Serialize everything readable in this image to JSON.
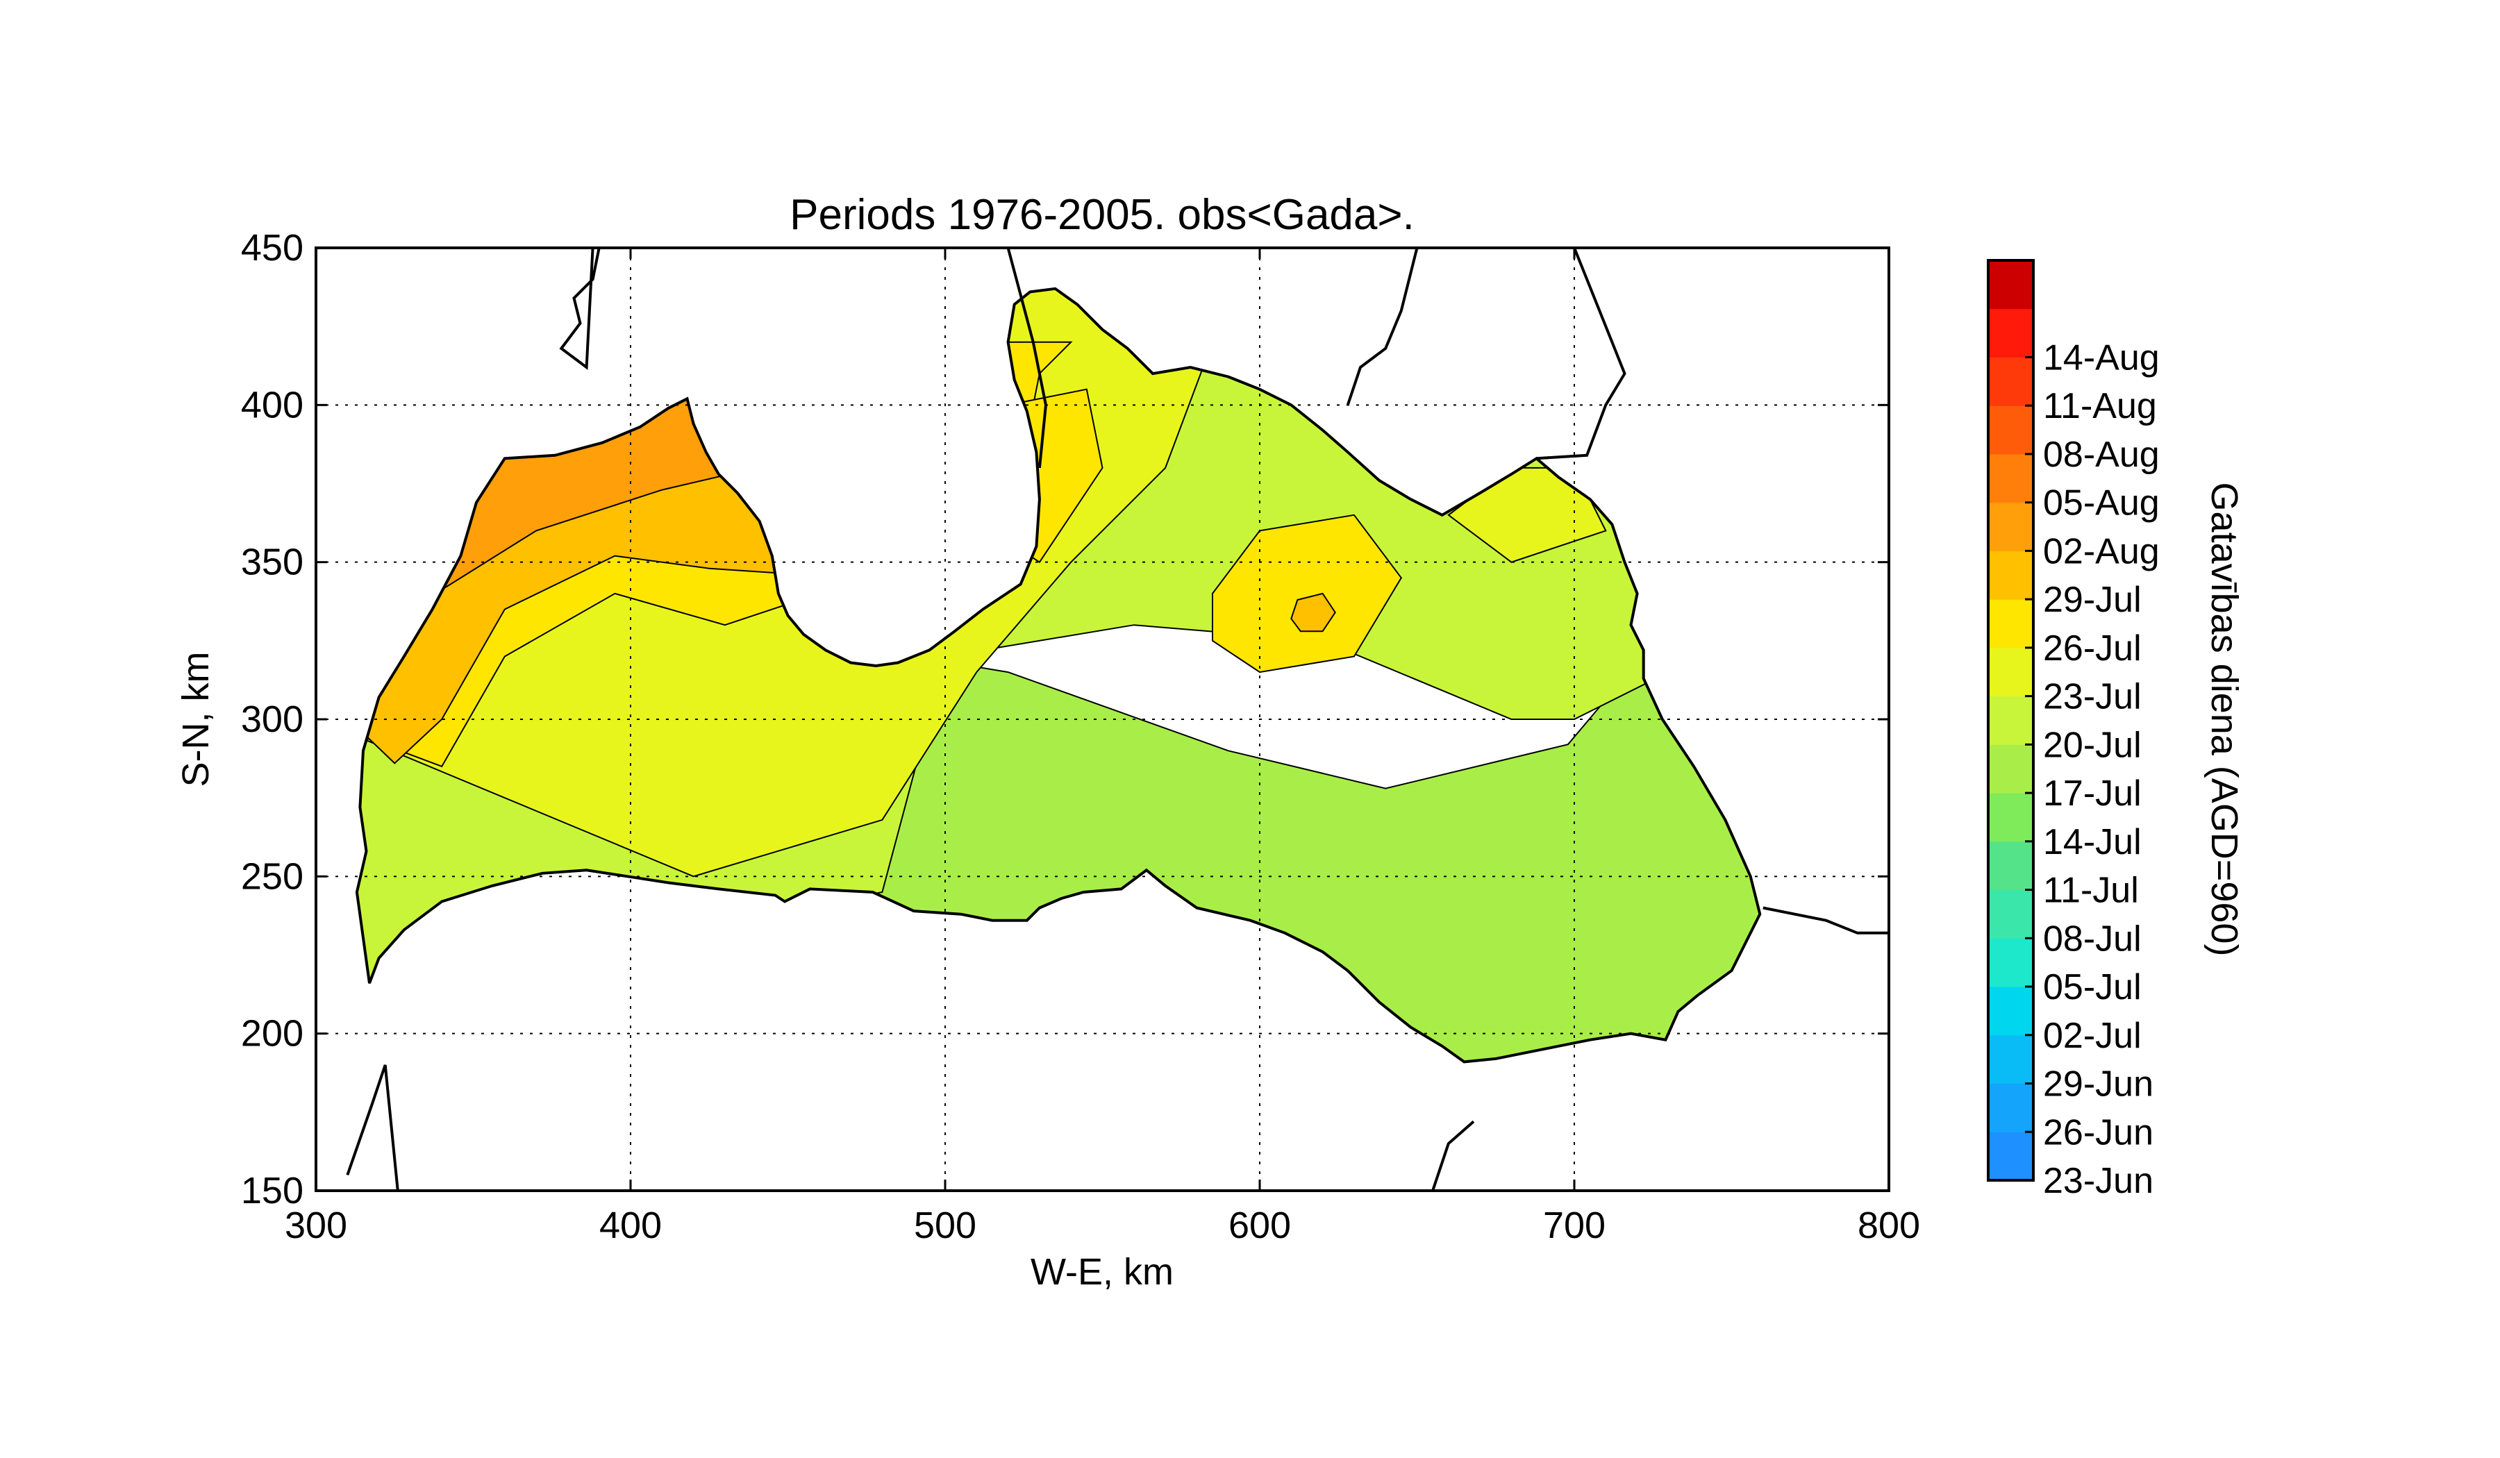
{
  "chart_data": {
    "type": "contour-map",
    "title": "Periods 1976-2005. obs<Gada>.",
    "xlabel": "W-E, km",
    "ylabel": "S-N, km",
    "xlim": [
      300,
      800
    ],
    "ylim": [
      150,
      450
    ],
    "xticks": [
      300,
      400,
      500,
      600,
      700,
      800
    ],
    "yticks": [
      150,
      200,
      250,
      300,
      350,
      400,
      450
    ],
    "grid": true,
    "colorbar": {
      "label": "Gatavības diena (AGD=960)",
      "levels": [
        {
          "label": "23-Jun",
          "color": "#1e90ff"
        },
        {
          "label": "26-Jun",
          "color": "#14a4fb"
        },
        {
          "label": "29-Jun",
          "color": "#0abcf6"
        },
        {
          "label": "02-Jul",
          "color": "#00d6ee"
        },
        {
          "label": "05-Jul",
          "color": "#1de8cc"
        },
        {
          "label": "08-Jul",
          "color": "#3ae6aa"
        },
        {
          "label": "11-Jul",
          "color": "#55e38a"
        },
        {
          "label": "14-Jul",
          "color": "#7fea5a"
        },
        {
          "label": "17-Jul",
          "color": "#a9ee48"
        },
        {
          "label": "20-Jul",
          "color": "#c8f53a"
        },
        {
          "label": "23-Jul",
          "color": "#e8f51c"
        },
        {
          "label": "26-Jul",
          "color": "#ffe600"
        },
        {
          "label": "29-Jul",
          "color": "#ffc000"
        },
        {
          "label": "02-Aug",
          "color": "#ff9f0a"
        },
        {
          "label": "05-Aug",
          "color": "#ff7f0a"
        },
        {
          "label": "08-Aug",
          "color": "#ff5c0a"
        },
        {
          "label": "11-Aug",
          "color": "#ff3a0a"
        },
        {
          "label": "14-Aug",
          "color": "#ff1a0a"
        },
        {
          "label": "",
          "color": "#cc0000"
        }
      ]
    },
    "regions": [
      {
        "level": "02-Aug",
        "desc": "north-west corner"
      },
      {
        "level": "29-Jul",
        "desc": "west coast"
      },
      {
        "level": "26-Jul",
        "desc": "west-central and north-centre"
      },
      {
        "level": "23-Jul",
        "desc": "central, north-east"
      },
      {
        "level": "20-Jul",
        "desc": "central south, east"
      },
      {
        "level": "17-Jul",
        "desc": "south-central"
      }
    ]
  }
}
